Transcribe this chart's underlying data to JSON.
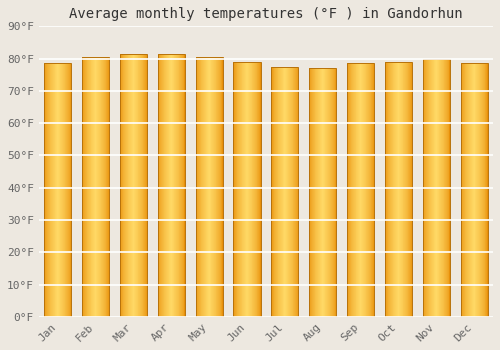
{
  "title": "Average monthly temperatures (°F ) in Gandorhun",
  "months": [
    "Jan",
    "Feb",
    "Mar",
    "Apr",
    "May",
    "Jun",
    "Jul",
    "Aug",
    "Sep",
    "Oct",
    "Nov",
    "Dec"
  ],
  "values": [
    78.5,
    80.5,
    81.5,
    81.5,
    80.5,
    79.0,
    77.5,
    77.0,
    78.5,
    79.0,
    80.0,
    78.5
  ],
  "ylim": [
    0,
    90
  ],
  "yticks": [
    0,
    10,
    20,
    30,
    40,
    50,
    60,
    70,
    80,
    90
  ],
  "ytick_labels": [
    "0°F",
    "10°F",
    "20°F",
    "30°F",
    "40°F",
    "50°F",
    "60°F",
    "70°F",
    "80°F",
    "90°F"
  ],
  "bar_color_center": "#FFD966",
  "bar_color_edge": "#E8900A",
  "bar_outline_color": "#B8720A",
  "background_color": "#ede8e0",
  "grid_color": "#ffffff",
  "title_fontsize": 10,
  "tick_fontsize": 8,
  "font_family": "monospace"
}
